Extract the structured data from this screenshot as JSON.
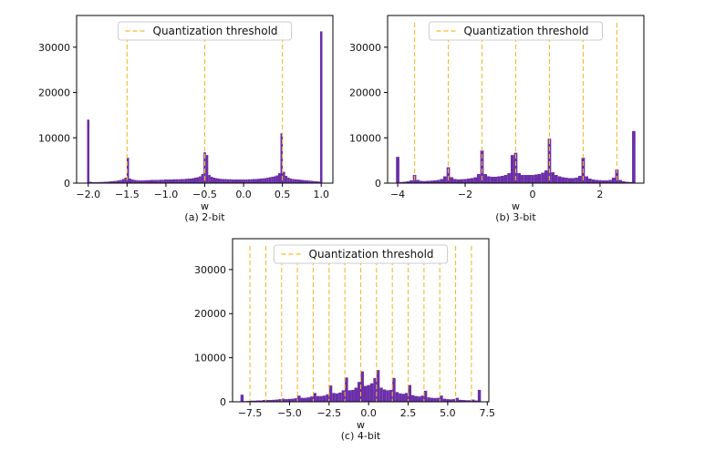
{
  "chart_data": [
    {
      "type": "bar",
      "caption": "(a) 2-bit",
      "xlabel": "w",
      "ylabel": "",
      "xlim": [
        -2.15,
        1.15
      ],
      "ylim": [
        0,
        37000
      ],
      "xticks": [
        -2.0,
        -1.5,
        -1.0,
        -0.5,
        0.0,
        0.5,
        1.0
      ],
      "xtick_labels": [
        "−2.0",
        "−1.5",
        "−1.0",
        "−0.5",
        "0.0",
        "0.5",
        "1.0"
      ],
      "yticks": [
        0,
        10000,
        20000,
        30000
      ],
      "ytick_labels": [
        "0",
        "10000",
        "20000",
        "30000"
      ],
      "grid": false,
      "legend": {
        "placement": "upper-center",
        "entries": [
          "Quantization threshold"
        ]
      },
      "thresholds": [
        -1.5,
        -0.5,
        0.5
      ],
      "bar_color": "#6a2fa8",
      "threshold_color": "#f5b82e",
      "bin_width": 0.03,
      "bars": [
        {
          "x": -2.0,
          "y": 14000
        },
        {
          "x": -1.97,
          "y": 300
        },
        {
          "x": -1.94,
          "y": 200
        },
        {
          "x": -1.91,
          "y": 200
        },
        {
          "x": -1.88,
          "y": 200
        },
        {
          "x": -1.85,
          "y": 250
        },
        {
          "x": -1.82,
          "y": 250
        },
        {
          "x": -1.79,
          "y": 300
        },
        {
          "x": -1.76,
          "y": 300
        },
        {
          "x": -1.73,
          "y": 350
        },
        {
          "x": -1.7,
          "y": 400
        },
        {
          "x": -1.67,
          "y": 450
        },
        {
          "x": -1.64,
          "y": 500
        },
        {
          "x": -1.61,
          "y": 600
        },
        {
          "x": -1.58,
          "y": 700
        },
        {
          "x": -1.55,
          "y": 900
        },
        {
          "x": -1.52,
          "y": 1200
        },
        {
          "x": -1.49,
          "y": 5600
        },
        {
          "x": -1.46,
          "y": 1000
        },
        {
          "x": -1.43,
          "y": 800
        },
        {
          "x": -1.4,
          "y": 700
        },
        {
          "x": -1.37,
          "y": 650
        },
        {
          "x": -1.34,
          "y": 600
        },
        {
          "x": -1.31,
          "y": 600
        },
        {
          "x": -1.28,
          "y": 600
        },
        {
          "x": -1.25,
          "y": 650
        },
        {
          "x": -1.22,
          "y": 650
        },
        {
          "x": -1.19,
          "y": 700
        },
        {
          "x": -1.16,
          "y": 700
        },
        {
          "x": -1.13,
          "y": 700
        },
        {
          "x": -1.1,
          "y": 700
        },
        {
          "x": -1.07,
          "y": 750
        },
        {
          "x": -1.04,
          "y": 750
        },
        {
          "x": -1.01,
          "y": 800
        },
        {
          "x": -0.98,
          "y": 800
        },
        {
          "x": -0.95,
          "y": 800
        },
        {
          "x": -0.92,
          "y": 800
        },
        {
          "x": -0.89,
          "y": 850
        },
        {
          "x": -0.86,
          "y": 850
        },
        {
          "x": -0.83,
          "y": 850
        },
        {
          "x": -0.8,
          "y": 900
        },
        {
          "x": -0.77,
          "y": 900
        },
        {
          "x": -0.74,
          "y": 950
        },
        {
          "x": -0.71,
          "y": 1000
        },
        {
          "x": -0.68,
          "y": 1000
        },
        {
          "x": -0.65,
          "y": 1100
        },
        {
          "x": -0.62,
          "y": 1200
        },
        {
          "x": -0.59,
          "y": 1300
        },
        {
          "x": -0.56,
          "y": 1500
        },
        {
          "x": -0.53,
          "y": 2000
        },
        {
          "x": -0.5,
          "y": 6800
        },
        {
          "x": -0.47,
          "y": 6200
        },
        {
          "x": -0.44,
          "y": 1800
        },
        {
          "x": -0.41,
          "y": 1400
        },
        {
          "x": -0.38,
          "y": 1200
        },
        {
          "x": -0.35,
          "y": 1100
        },
        {
          "x": -0.32,
          "y": 1000
        },
        {
          "x": -0.29,
          "y": 950
        },
        {
          "x": -0.26,
          "y": 900
        },
        {
          "x": -0.23,
          "y": 900
        },
        {
          "x": -0.2,
          "y": 850
        },
        {
          "x": -0.17,
          "y": 850
        },
        {
          "x": -0.14,
          "y": 800
        },
        {
          "x": -0.11,
          "y": 800
        },
        {
          "x": -0.08,
          "y": 800
        },
        {
          "x": -0.05,
          "y": 800
        },
        {
          "x": -0.02,
          "y": 800
        },
        {
          "x": 0.01,
          "y": 800
        },
        {
          "x": 0.04,
          "y": 800
        },
        {
          "x": 0.07,
          "y": 850
        },
        {
          "x": 0.1,
          "y": 850
        },
        {
          "x": 0.13,
          "y": 900
        },
        {
          "x": 0.16,
          "y": 900
        },
        {
          "x": 0.19,
          "y": 950
        },
        {
          "x": 0.22,
          "y": 1000
        },
        {
          "x": 0.25,
          "y": 1050
        },
        {
          "x": 0.28,
          "y": 1100
        },
        {
          "x": 0.31,
          "y": 1200
        },
        {
          "x": 0.34,
          "y": 1300
        },
        {
          "x": 0.37,
          "y": 1400
        },
        {
          "x": 0.4,
          "y": 1500
        },
        {
          "x": 0.43,
          "y": 1700
        },
        {
          "x": 0.46,
          "y": 2200
        },
        {
          "x": 0.49,
          "y": 11000
        },
        {
          "x": 0.52,
          "y": 2500
        },
        {
          "x": 0.55,
          "y": 1600
        },
        {
          "x": 0.58,
          "y": 1200
        },
        {
          "x": 0.61,
          "y": 1000
        },
        {
          "x": 0.64,
          "y": 900
        },
        {
          "x": 0.67,
          "y": 850
        },
        {
          "x": 0.7,
          "y": 800
        },
        {
          "x": 0.73,
          "y": 750
        },
        {
          "x": 0.76,
          "y": 700
        },
        {
          "x": 0.79,
          "y": 650
        },
        {
          "x": 0.82,
          "y": 600
        },
        {
          "x": 0.85,
          "y": 550
        },
        {
          "x": 0.88,
          "y": 500
        },
        {
          "x": 0.91,
          "y": 450
        },
        {
          "x": 0.94,
          "y": 400
        },
        {
          "x": 0.97,
          "y": 350
        },
        {
          "x": 1.0,
          "y": 33500
        }
      ]
    },
    {
      "type": "bar",
      "caption": "(b) 3-bit",
      "xlabel": "w",
      "ylabel": "",
      "xlim": [
        -4.3,
        3.3
      ],
      "ylim": [
        0,
        37000
      ],
      "xticks": [
        -4,
        -2,
        0,
        2
      ],
      "xtick_labels": [
        "−4",
        "−2",
        "0",
        "2"
      ],
      "yticks": [
        0,
        10000,
        20000,
        30000
      ],
      "ytick_labels": [
        "0",
        "10000",
        "20000",
        "30000"
      ],
      "grid": false,
      "legend": {
        "placement": "upper-center",
        "entries": [
          "Quantization threshold"
        ]
      },
      "thresholds": [
        -3.5,
        -2.5,
        -1.5,
        -0.5,
        0.5,
        1.5,
        2.5
      ],
      "bar_color": "#6a2fa8",
      "threshold_color": "#f5b82e",
      "bin_width": 0.1,
      "bars": [
        {
          "x": -4.0,
          "y": 5800
        },
        {
          "x": -3.9,
          "y": 250
        },
        {
          "x": -3.8,
          "y": 300
        },
        {
          "x": -3.7,
          "y": 400
        },
        {
          "x": -3.6,
          "y": 600
        },
        {
          "x": -3.5,
          "y": 1800
        },
        {
          "x": -3.4,
          "y": 700
        },
        {
          "x": -3.3,
          "y": 500
        },
        {
          "x": -3.2,
          "y": 450
        },
        {
          "x": -3.1,
          "y": 500
        },
        {
          "x": -3.0,
          "y": 550
        },
        {
          "x": -2.9,
          "y": 600
        },
        {
          "x": -2.8,
          "y": 700
        },
        {
          "x": -2.7,
          "y": 900
        },
        {
          "x": -2.6,
          "y": 1500
        },
        {
          "x": -2.5,
          "y": 3500
        },
        {
          "x": -2.4,
          "y": 1300
        },
        {
          "x": -2.3,
          "y": 900
        },
        {
          "x": -2.2,
          "y": 800
        },
        {
          "x": -2.1,
          "y": 850
        },
        {
          "x": -2.0,
          "y": 900
        },
        {
          "x": -1.9,
          "y": 1000
        },
        {
          "x": -1.8,
          "y": 1100
        },
        {
          "x": -1.7,
          "y": 1300
        },
        {
          "x": -1.6,
          "y": 2000
        },
        {
          "x": -1.5,
          "y": 7200
        },
        {
          "x": -1.4,
          "y": 2000
        },
        {
          "x": -1.3,
          "y": 1500
        },
        {
          "x": -1.2,
          "y": 1400
        },
        {
          "x": -1.1,
          "y": 1400
        },
        {
          "x": -1.0,
          "y": 1500
        },
        {
          "x": -0.9,
          "y": 1600
        },
        {
          "x": -0.8,
          "y": 1800
        },
        {
          "x": -0.7,
          "y": 2200
        },
        {
          "x": -0.6,
          "y": 6200
        },
        {
          "x": -0.5,
          "y": 6700
        },
        {
          "x": -0.4,
          "y": 2200
        },
        {
          "x": -0.3,
          "y": 1800
        },
        {
          "x": -0.2,
          "y": 1800
        },
        {
          "x": -0.1,
          "y": 1800
        },
        {
          "x": 0.0,
          "y": 1800
        },
        {
          "x": 0.1,
          "y": 1900
        },
        {
          "x": 0.2,
          "y": 2000
        },
        {
          "x": 0.3,
          "y": 2300
        },
        {
          "x": 0.4,
          "y": 2800
        },
        {
          "x": 0.5,
          "y": 9800
        },
        {
          "x": 0.6,
          "y": 2400
        },
        {
          "x": 0.7,
          "y": 1800
        },
        {
          "x": 0.8,
          "y": 1500
        },
        {
          "x": 0.9,
          "y": 1300
        },
        {
          "x": 1.0,
          "y": 1200
        },
        {
          "x": 1.1,
          "y": 1100
        },
        {
          "x": 1.2,
          "y": 1100
        },
        {
          "x": 1.3,
          "y": 1200
        },
        {
          "x": 1.4,
          "y": 1600
        },
        {
          "x": 1.5,
          "y": 5600
        },
        {
          "x": 1.6,
          "y": 1500
        },
        {
          "x": 1.7,
          "y": 1000
        },
        {
          "x": 1.8,
          "y": 800
        },
        {
          "x": 1.9,
          "y": 700
        },
        {
          "x": 2.0,
          "y": 650
        },
        {
          "x": 2.1,
          "y": 600
        },
        {
          "x": 2.2,
          "y": 600
        },
        {
          "x": 2.3,
          "y": 700
        },
        {
          "x": 2.4,
          "y": 1200
        },
        {
          "x": 2.5,
          "y": 3000
        },
        {
          "x": 2.6,
          "y": 700
        },
        {
          "x": 2.7,
          "y": 400
        },
        {
          "x": 2.8,
          "y": 300
        },
        {
          "x": 2.9,
          "y": 250
        },
        {
          "x": 3.0,
          "y": 11500
        }
      ]
    },
    {
      "type": "bar",
      "caption": "(c) 4-bit",
      "xlabel": "w",
      "ylabel": "",
      "xlim": [
        -8.6,
        7.6
      ],
      "ylim": [
        0,
        37000
      ],
      "xticks": [
        -7.5,
        -5.0,
        -2.5,
        0.0,
        2.5,
        5.0,
        7.5
      ],
      "xtick_labels": [
        "−7.5",
        "−5.0",
        "−2.5",
        "0.0",
        "2.5",
        "5.0",
        "7.5"
      ],
      "yticks": [
        0,
        10000,
        20000,
        30000
      ],
      "ytick_labels": [
        "0",
        "10000",
        "20000",
        "30000"
      ],
      "grid": false,
      "legend": {
        "placement": "upper-center",
        "entries": [
          "Quantization threshold"
        ]
      },
      "thresholds": [
        -7.5,
        -6.5,
        -5.5,
        -4.5,
        -3.5,
        -2.5,
        -1.5,
        -0.5,
        0.5,
        1.5,
        2.5,
        3.5,
        4.5,
        5.5,
        6.5
      ],
      "bar_color": "#6a2fa8",
      "threshold_color": "#f5b82e",
      "bin_width": 0.2,
      "bars": [
        {
          "x": -8.0,
          "y": 1600
        },
        {
          "x": -7.8,
          "y": 150
        },
        {
          "x": -7.6,
          "y": 200
        },
        {
          "x": -7.4,
          "y": 250
        },
        {
          "x": -7.2,
          "y": 250
        },
        {
          "x": -7.0,
          "y": 300
        },
        {
          "x": -6.8,
          "y": 300
        },
        {
          "x": -6.6,
          "y": 400
        },
        {
          "x": -6.4,
          "y": 400
        },
        {
          "x": -6.2,
          "y": 400
        },
        {
          "x": -6.0,
          "y": 450
        },
        {
          "x": -5.8,
          "y": 500
        },
        {
          "x": -5.6,
          "y": 600
        },
        {
          "x": -5.4,
          "y": 700
        },
        {
          "x": -5.2,
          "y": 600
        },
        {
          "x": -5.0,
          "y": 650
        },
        {
          "x": -4.8,
          "y": 700
        },
        {
          "x": -4.6,
          "y": 800
        },
        {
          "x": -4.4,
          "y": 1400
        },
        {
          "x": -4.2,
          "y": 900
        },
        {
          "x": -4.0,
          "y": 900
        },
        {
          "x": -3.8,
          "y": 1000
        },
        {
          "x": -3.6,
          "y": 1200
        },
        {
          "x": -3.4,
          "y": 2000
        },
        {
          "x": -3.2,
          "y": 1300
        },
        {
          "x": -3.0,
          "y": 1300
        },
        {
          "x": -2.8,
          "y": 1400
        },
        {
          "x": -2.6,
          "y": 1700
        },
        {
          "x": -2.4,
          "y": 3700
        },
        {
          "x": -2.2,
          "y": 2000
        },
        {
          "x": -2.0,
          "y": 1900
        },
        {
          "x": -1.8,
          "y": 2100
        },
        {
          "x": -1.6,
          "y": 2600
        },
        {
          "x": -1.4,
          "y": 5500
        },
        {
          "x": -1.2,
          "y": 2600
        },
        {
          "x": -1.0,
          "y": 2700
        },
        {
          "x": -0.8,
          "y": 3200
        },
        {
          "x": -0.6,
          "y": 4500
        },
        {
          "x": -0.4,
          "y": 6900
        },
        {
          "x": -0.2,
          "y": 3600
        },
        {
          "x": 0.0,
          "y": 3800
        },
        {
          "x": 0.2,
          "y": 4200
        },
        {
          "x": 0.4,
          "y": 5400
        },
        {
          "x": 0.6,
          "y": 7200
        },
        {
          "x": 0.8,
          "y": 3200
        },
        {
          "x": 1.0,
          "y": 2800
        },
        {
          "x": 1.2,
          "y": 2600
        },
        {
          "x": 1.4,
          "y": 2700
        },
        {
          "x": 1.6,
          "y": 5400
        },
        {
          "x": 1.8,
          "y": 2200
        },
        {
          "x": 2.0,
          "y": 1900
        },
        {
          "x": 2.2,
          "y": 1800
        },
        {
          "x": 2.4,
          "y": 2000
        },
        {
          "x": 2.6,
          "y": 3800
        },
        {
          "x": 2.8,
          "y": 1500
        },
        {
          "x": 3.0,
          "y": 1300
        },
        {
          "x": 3.2,
          "y": 1200
        },
        {
          "x": 3.4,
          "y": 1400
        },
        {
          "x": 3.6,
          "y": 2500
        },
        {
          "x": 3.8,
          "y": 1000
        },
        {
          "x": 4.0,
          "y": 900
        },
        {
          "x": 4.2,
          "y": 850
        },
        {
          "x": 4.4,
          "y": 900
        },
        {
          "x": 4.6,
          "y": 1400
        },
        {
          "x": 4.8,
          "y": 700
        },
        {
          "x": 5.0,
          "y": 600
        },
        {
          "x": 5.2,
          "y": 550
        },
        {
          "x": 5.4,
          "y": 600
        },
        {
          "x": 5.6,
          "y": 900
        },
        {
          "x": 5.8,
          "y": 450
        },
        {
          "x": 6.0,
          "y": 400
        },
        {
          "x": 6.2,
          "y": 350
        },
        {
          "x": 6.4,
          "y": 350
        },
        {
          "x": 6.6,
          "y": 500
        },
        {
          "x": 6.8,
          "y": 300
        },
        {
          "x": 7.0,
          "y": 2700
        }
      ]
    }
  ]
}
